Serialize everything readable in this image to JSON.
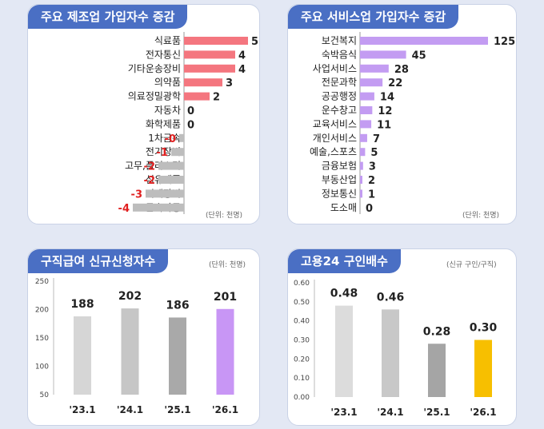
{
  "panels": {
    "manufacturing": {
      "title": "주요 제조업 가입자수 증감",
      "unit": "(단위: 천명)",
      "chart_data": {
        "type": "bar",
        "orientation": "horizontal",
        "categories": [
          "식료품",
          "전자통신",
          "기타운송장비",
          "의약품",
          "의료정밀광학",
          "자동차",
          "화학제품",
          "1차금속",
          "전기장비",
          "고무,플리스틱",
          "섬유제품",
          "기계장비",
          "금속가공"
        ],
        "values": [
          5,
          4,
          4,
          3,
          2,
          0,
          0,
          0,
          -1,
          -2,
          -2,
          -3,
          -4
        ],
        "labels": [
          "5",
          "4",
          "4",
          "3",
          "2",
          "0",
          "0",
          "-0",
          "-1",
          "-2",
          "-2",
          "-3",
          "-4"
        ],
        "colors": {
          "positive": "#f4767f",
          "negative": "#bdbdbd",
          "negative_label": "#e02020"
        }
      }
    },
    "services": {
      "title": "주요 서비스업 가입자수 증감",
      "unit": "(단위: 천명)",
      "chart_data": {
        "type": "bar",
        "orientation": "horizontal",
        "categories": [
          "보건복지",
          "숙박음식",
          "사업서비스",
          "전문과학",
          "공공행정",
          "운수창고",
          "교육서비스",
          "개인서비스",
          "예술,스포츠",
          "금융보험",
          "부동산업",
          "정보통신",
          "도소매"
        ],
        "values": [
          125,
          45,
          28,
          22,
          14,
          12,
          11,
          7,
          5,
          3,
          2,
          1,
          0
        ],
        "colors": {
          "bar": "#c39cf2"
        }
      }
    },
    "jobseek": {
      "title": "구직급여 신규신청자수",
      "unit": "(단위: 천명)",
      "chart_data": {
        "type": "bar",
        "categories": [
          "'23.1",
          "'24.1",
          "'25.1",
          "'26.1"
        ],
        "values": [
          188,
          202,
          186,
          201
        ],
        "ylim": [
          50,
          250
        ],
        "yticks": [
          "50",
          "100",
          "150",
          "200",
          "250"
        ],
        "colors": [
          "#d6d6d6",
          "#c6c6c6",
          "#a9a9a9",
          "#c896f5"
        ]
      }
    },
    "ratio": {
      "title": "고용24 구인배수",
      "unit": "(신규 구인/구직)",
      "chart_data": {
        "type": "bar",
        "categories": [
          "'23.1",
          "'24.1",
          "'25.1",
          "'26.1"
        ],
        "values": [
          0.48,
          0.46,
          0.28,
          0.3
        ],
        "labels": [
          "0.48",
          "0.46",
          "0.28",
          "0.30"
        ],
        "ylim": [
          0,
          0.6
        ],
        "yticks": [
          "0.00",
          "0.10",
          "0.20",
          "0.30",
          "0.40",
          "0.50",
          "0.60"
        ],
        "colors": [
          "#dcdcdc",
          "#c8c8c8",
          "#a5a5a5",
          "#f7bf00"
        ]
      }
    }
  }
}
